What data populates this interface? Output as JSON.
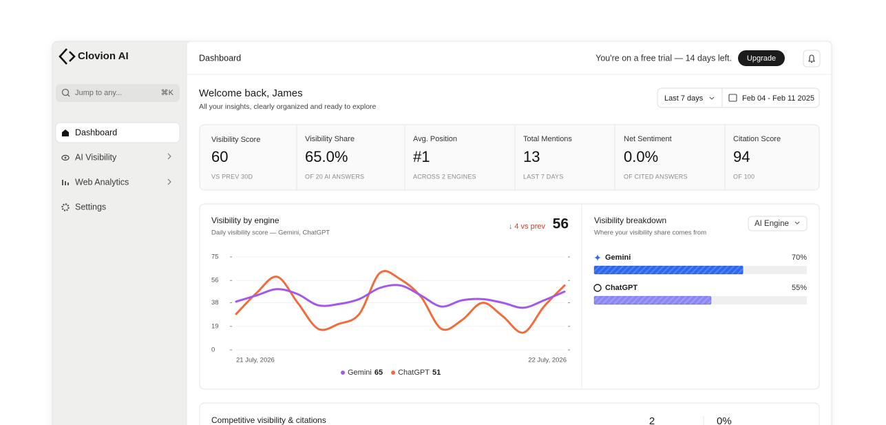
{
  "sidebar": {
    "brand": "Clovion AI",
    "search": {
      "placeholder": "Jump to any...",
      "shortcut": "⌘K"
    },
    "nav": [
      "Dashboard",
      "AI Visibility",
      "Web Analytics",
      "Settings"
    ]
  },
  "topbar": {
    "title": "Dashboard",
    "trial": "You're on a free trial — 14 days left.",
    "upgrade": "Upgrade"
  },
  "welcome": {
    "title": "Welcome back, James",
    "subtitle": "All your insights, clearly organized and ready to explore",
    "range": "Last 7 days",
    "dates": "Feb 04 - Feb 11 2025"
  },
  "kpis": [
    {
      "label": "Visibility Score",
      "value": "60",
      "note": "VS PREV 30D"
    },
    {
      "label": "Visibility Share",
      "value": "65.0%",
      "note": "OF 20 AI ANSWERS"
    },
    {
      "label": "Avg. Position",
      "value": "#1",
      "note": "ACROSS 2 ENGINES"
    },
    {
      "label": "Total Mentions",
      "value": "13",
      "note": "LAST 7 DAYS"
    },
    {
      "label": "Net Sentiment",
      "value": "0.0%",
      "note": "OF CITED ANSWERS"
    },
    {
      "label": "Citation Score",
      "value": "94",
      "note": "OF 100"
    }
  ],
  "chart_data": {
    "type": "line",
    "title": "Visibility by engine",
    "subtitle": "Daily visibility score — Gemini, ChatGPT",
    "change": "↓ 4 vs prev",
    "headline": 56,
    "categories": [
      "21 July, 2026",
      null,
      null,
      null,
      null,
      null,
      null,
      null,
      null,
      null,
      null,
      null,
      null,
      null,
      null,
      null,
      "22 July, 2026"
    ],
    "series": [
      {
        "name": "Gemini",
        "color": "#a258ea",
        "total": 65,
        "values": [
          39,
          44,
          49,
          45,
          36,
          37,
          41,
          50,
          52,
          44,
          35,
          40,
          41,
          38,
          34,
          40,
          47
        ]
      },
      {
        "name": "ChatGPT",
        "color": "#f26b3a",
        "total": 51,
        "values": [
          29,
          46,
          59,
          38,
          17,
          21,
          29,
          62,
          57,
          43,
          17,
          24,
          38,
          27,
          14,
          35,
          52
        ]
      }
    ],
    "ylim": [
      0,
      75
    ],
    "yticks": [
      0,
      19,
      38,
      56,
      75
    ]
  },
  "breakdown": {
    "title": "Visibility breakdown",
    "subtitle": "Where your visibility share comes from",
    "filter": "AI Engine",
    "items": [
      {
        "name": "Gemini",
        "value": 70,
        "label": "70%",
        "color": "#2d67ee"
      },
      {
        "name": "ChatGPT",
        "value": 55,
        "label": "55%",
        "color": "#8c86f3"
      }
    ]
  },
  "competitive": {
    "title": "Competitive visibility & citations",
    "stats": [
      "2",
      "0%"
    ]
  }
}
